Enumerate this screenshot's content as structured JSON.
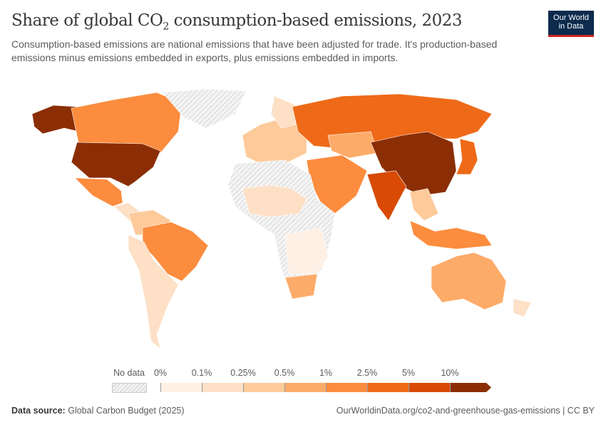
{
  "header": {
    "title_pre": "Share of global CO",
    "title_sub": "2",
    "title_post": " consumption-based emissions, 2023",
    "subtitle": "Consumption-based emissions are national emissions that have been adjusted for trade. It's production-based emissions minus emissions embedded in exports, plus emissions embedded in imports.",
    "logo_line1": "Our World",
    "logo_line2": "in Data"
  },
  "legend": {
    "no_data_label": "No data",
    "ticks": [
      "0%",
      "0.1%",
      "0.25%",
      "0.5%",
      "1%",
      "2.5%",
      "5%",
      "10%"
    ],
    "colors": [
      "#fef0e4",
      "#fde0c6",
      "#fdca9a",
      "#fdab69",
      "#fc8c3e",
      "#ee6a18",
      "#d84a05",
      "#8b2e05"
    ],
    "no_data_color": "#e5e5e5"
  },
  "footer": {
    "source_label": "Data source:",
    "source": "Global Carbon Budget (2025)",
    "url": "OurWorldinData.org/co2-and-greenhouse-gas-emissions | CC BY"
  }
}
